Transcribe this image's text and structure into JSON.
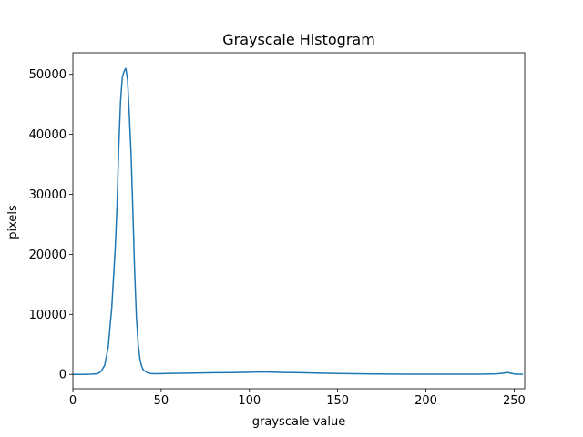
{
  "chart_data": {
    "type": "line",
    "title": "Grayscale Histogram",
    "xlabel": "grayscale value",
    "ylabel": "pixels",
    "xlim": [
      0,
      256
    ],
    "ylim": [
      -2400,
      53600
    ],
    "xticks": [
      0,
      50,
      100,
      150,
      200,
      250
    ],
    "yticks": [
      0,
      10000,
      20000,
      30000,
      40000,
      50000
    ],
    "grid": false,
    "line_color": "#1f77b4",
    "series": [
      {
        "x": [
          0,
          5,
          10,
          14,
          16,
          18,
          20,
          22,
          24,
          25,
          26,
          27,
          28,
          29,
          30,
          31,
          32,
          33,
          34,
          35,
          36,
          37,
          38,
          39,
          40,
          42,
          44,
          46,
          50,
          60,
          70,
          80,
          90,
          100,
          105,
          110,
          120,
          130,
          140,
          150,
          160,
          170,
          180,
          190,
          200,
          210,
          220,
          230,
          240,
          244,
          246,
          248,
          250,
          252,
          255
        ],
        "y": [
          0,
          0,
          20,
          100,
          500,
          1500,
          4500,
          11000,
          21000,
          28000,
          38000,
          45500,
          49500,
          50500,
          51000,
          49000,
          43000,
          36500,
          27000,
          17000,
          9500,
          5000,
          2500,
          1300,
          700,
          300,
          150,
          100,
          120,
          180,
          220,
          280,
          300,
          350,
          400,
          380,
          320,
          270,
          200,
          150,
          100,
          70,
          50,
          30,
          20,
          20,
          20,
          30,
          80,
          200,
          320,
          200,
          60,
          20,
          20
        ]
      }
    ]
  }
}
